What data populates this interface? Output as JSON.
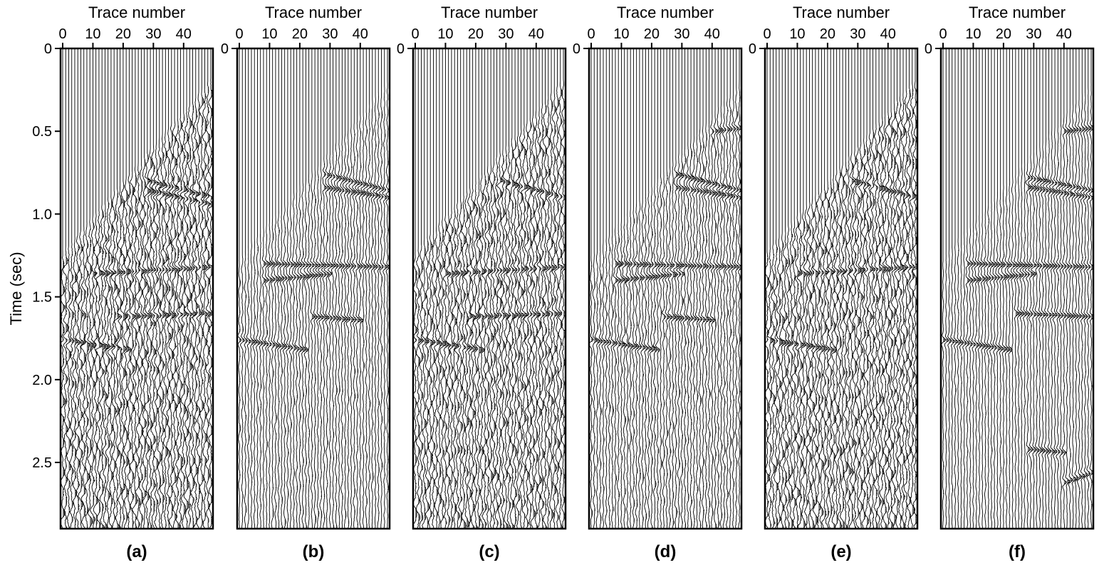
{
  "figure": {
    "ylabel": "Time (sec)",
    "xlabel": "Trace number"
  },
  "chart_data": [
    {
      "type": "seismic-wiggle",
      "panel_label": "(a)",
      "xlabel": "Trace number",
      "ylabel": "Time (sec)",
      "x_ticks": [
        0,
        10,
        20,
        30,
        40
      ],
      "y_ticks": [
        "0",
        "0.5",
        "1.0",
        "1.5",
        "2.0",
        "2.5"
      ],
      "xlim": [
        0,
        49
      ],
      "ylim": [
        0,
        2.9
      ],
      "trace_count": 50,
      "first_arrival": {
        "t_at_trace0": 1.22,
        "t_at_trace49": 0.18
      },
      "noise_level": 1.0,
      "events": [
        {
          "t0": 0.8,
          "t1": 0.9,
          "x0": 28,
          "x1": 49
        },
        {
          "t0": 0.86,
          "t1": 0.94,
          "x0": 28,
          "x1": 49
        },
        {
          "t0": 1.36,
          "t1": 1.32,
          "x0": 10,
          "x1": 49
        },
        {
          "t0": 1.62,
          "t1": 1.6,
          "x0": 18,
          "x1": 49
        },
        {
          "t0": 1.76,
          "t1": 1.82,
          "x0": 0,
          "x1": 22
        }
      ]
    },
    {
      "type": "seismic-wiggle",
      "panel_label": "(b)",
      "xlabel": "Trace number",
      "ylabel": "",
      "x_ticks": [
        0,
        10,
        20,
        30,
        40
      ],
      "y_ticks": [
        "0"
      ],
      "xlim": [
        0,
        49
      ],
      "ylim": [
        0,
        2.9
      ],
      "trace_count": 50,
      "first_arrival": {
        "t_at_trace0": 1.25,
        "t_at_trace49": 0.2
      },
      "noise_level": 0.35,
      "events": [
        {
          "t0": 0.76,
          "t1": 0.86,
          "x0": 28,
          "x1": 49
        },
        {
          "t0": 0.84,
          "t1": 0.9,
          "x0": 28,
          "x1": 49
        },
        {
          "t0": 1.3,
          "t1": 1.32,
          "x0": 8,
          "x1": 49
        },
        {
          "t0": 1.4,
          "t1": 1.36,
          "x0": 8,
          "x1": 30
        },
        {
          "t0": 1.62,
          "t1": 1.64,
          "x0": 24,
          "x1": 40
        },
        {
          "t0": 1.76,
          "t1": 1.82,
          "x0": 0,
          "x1": 22
        }
      ]
    },
    {
      "type": "seismic-wiggle",
      "panel_label": "(c)",
      "xlabel": "Trace number",
      "ylabel": "",
      "x_ticks": [
        0,
        10,
        20,
        30,
        40
      ],
      "y_ticks": [
        "0"
      ],
      "xlim": [
        0,
        49
      ],
      "ylim": [
        0,
        2.9
      ],
      "trace_count": 50,
      "first_arrival": {
        "t_at_trace0": 1.22,
        "t_at_trace49": 0.18
      },
      "noise_level": 0.9,
      "events": [
        {
          "t0": 0.8,
          "t1": 0.9,
          "x0": 28,
          "x1": 49
        },
        {
          "t0": 1.36,
          "t1": 1.32,
          "x0": 10,
          "x1": 49
        },
        {
          "t0": 1.62,
          "t1": 1.6,
          "x0": 18,
          "x1": 49
        },
        {
          "t0": 1.76,
          "t1": 1.82,
          "x0": 0,
          "x1": 22
        }
      ]
    },
    {
      "type": "seismic-wiggle",
      "panel_label": "(d)",
      "xlabel": "Trace number",
      "ylabel": "",
      "x_ticks": [
        0,
        10,
        20,
        30,
        40
      ],
      "y_ticks": [
        "0"
      ],
      "xlim": [
        0,
        49
      ],
      "ylim": [
        0,
        2.9
      ],
      "trace_count": 50,
      "first_arrival": {
        "t_at_trace0": 1.25,
        "t_at_trace49": 0.2
      },
      "noise_level": 0.45,
      "events": [
        {
          "t0": 0.5,
          "t1": 0.48,
          "x0": 40,
          "x1": 49
        },
        {
          "t0": 0.76,
          "t1": 0.86,
          "x0": 28,
          "x1": 49
        },
        {
          "t0": 0.84,
          "t1": 0.9,
          "x0": 28,
          "x1": 49
        },
        {
          "t0": 1.3,
          "t1": 1.32,
          "x0": 8,
          "x1": 49
        },
        {
          "t0": 1.4,
          "t1": 1.36,
          "x0": 8,
          "x1": 30
        },
        {
          "t0": 1.62,
          "t1": 1.64,
          "x0": 24,
          "x1": 40
        },
        {
          "t0": 1.76,
          "t1": 1.82,
          "x0": 0,
          "x1": 22
        }
      ]
    },
    {
      "type": "seismic-wiggle",
      "panel_label": "(e)",
      "xlabel": "Trace number",
      "ylabel": "",
      "x_ticks": [
        0,
        10,
        20,
        30,
        40
      ],
      "y_ticks": [
        "0"
      ],
      "xlim": [
        0,
        49
      ],
      "ylim": [
        0,
        2.9
      ],
      "trace_count": 50,
      "first_arrival": {
        "t_at_trace0": 1.22,
        "t_at_trace49": 0.18
      },
      "noise_level": 0.95,
      "events": [
        {
          "t0": 0.8,
          "t1": 0.9,
          "x0": 28,
          "x1": 49
        },
        {
          "t0": 1.36,
          "t1": 1.32,
          "x0": 10,
          "x1": 49
        },
        {
          "t0": 1.76,
          "t1": 1.82,
          "x0": 0,
          "x1": 22
        }
      ]
    },
    {
      "type": "seismic-wiggle",
      "panel_label": "(f)",
      "xlabel": "Trace number",
      "ylabel": "",
      "x_ticks": [
        0,
        10,
        20,
        30,
        40
      ],
      "y_ticks": [
        "0"
      ],
      "xlim": [
        0,
        49
      ],
      "ylim": [
        0,
        2.9
      ],
      "trace_count": 50,
      "first_arrival": {
        "t_at_trace0": 1.25,
        "t_at_trace49": 0.2
      },
      "noise_level": 0.25,
      "events": [
        {
          "t0": 0.5,
          "t1": 0.48,
          "x0": 40,
          "x1": 49
        },
        {
          "t0": 0.78,
          "t1": 0.86,
          "x0": 28,
          "x1": 49
        },
        {
          "t0": 0.84,
          "t1": 0.9,
          "x0": 28,
          "x1": 49
        },
        {
          "t0": 1.3,
          "t1": 1.32,
          "x0": 8,
          "x1": 49
        },
        {
          "t0": 1.4,
          "t1": 1.36,
          "x0": 8,
          "x1": 30
        },
        {
          "t0": 1.6,
          "t1": 1.62,
          "x0": 24,
          "x1": 49
        },
        {
          "t0": 1.76,
          "t1": 1.82,
          "x0": 0,
          "x1": 22
        },
        {
          "t0": 2.42,
          "t1": 2.44,
          "x0": 28,
          "x1": 40
        },
        {
          "t0": 2.62,
          "t1": 2.56,
          "x0": 40,
          "x1": 49
        }
      ]
    }
  ]
}
